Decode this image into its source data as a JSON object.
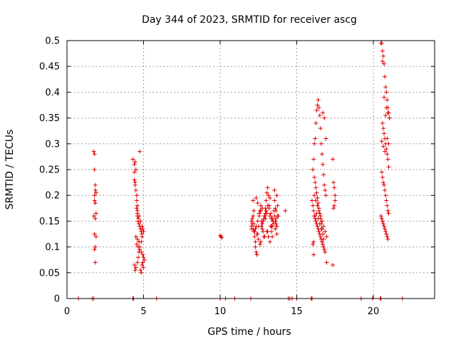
{
  "chart_data": {
    "type": "scatter",
    "title": "Day 344 of 2023, SRMTID for receiver ascg",
    "xlabel": "GPS time / hours",
    "ylabel": "SRMTID / TECUs",
    "xlim": [
      0,
      24
    ],
    "ylim": [
      0,
      0.5
    ],
    "x_ticks": [
      0,
      5,
      10,
      15,
      20
    ],
    "y_ticks": [
      0,
      0.05,
      0.1,
      0.15,
      0.2,
      0.25,
      0.3,
      0.35,
      0.4,
      0.45,
      0.5
    ],
    "x_tick_labels": [
      "0",
      "5",
      "10",
      "15",
      "20"
    ],
    "y_tick_labels": [
      "0",
      "0.05",
      "0.1",
      "0.15",
      "0.2",
      "0.25",
      "0.3",
      "0.35",
      "0.4",
      "0.45",
      "0.5"
    ],
    "grid": true,
    "marker": "+",
    "color": "#e00000",
    "series": [
      {
        "name": "SRMTID",
        "x": [
          0.75,
          1.65,
          1.75,
          1.8,
          1.8,
          1.85,
          1.85,
          1.8,
          1.9,
          1.8,
          1.85,
          1.9,
          1.75,
          1.85,
          1.8,
          1.9,
          1.85,
          1.8,
          1.85,
          1.75,
          4.3,
          4.3,
          4.4,
          4.4,
          4.45,
          4.45,
          4.5,
          4.55,
          4.55,
          4.6,
          4.6,
          4.6,
          4.65,
          4.65,
          4.7,
          4.75,
          4.8,
          4.85,
          4.9,
          4.5,
          4.6,
          4.7,
          4.55,
          4.65,
          4.75,
          4.85,
          4.95,
          5.0,
          5.05,
          4.95,
          4.9,
          5.0,
          4.8,
          4.85,
          4.75,
          4.45,
          4.5,
          4.4,
          4.55,
          4.6,
          4.7,
          4.8,
          4.9,
          4.95,
          5.0,
          4.9,
          4.85,
          4.75,
          4.7,
          4.65,
          4.6,
          4.5,
          4.45,
          4.4,
          4.35,
          5.85,
          10.0,
          10.05,
          10.1,
          10.0,
          10.35,
          10.95,
          12.0,
          12.05,
          12.05,
          12.1,
          12.1,
          12.15,
          12.15,
          12.2,
          12.2,
          12.25,
          12.3,
          12.3,
          12.35,
          12.4,
          12.45,
          12.5,
          12.55,
          12.6,
          12.65,
          12.7,
          12.75,
          12.8,
          12.85,
          12.9,
          12.95,
          13.0,
          13.05,
          13.1,
          13.15,
          13.2,
          13.25,
          13.3,
          13.35,
          13.4,
          13.45,
          13.5,
          13.55,
          13.6,
          13.65,
          13.7,
          13.75,
          12.2,
          12.3,
          12.4,
          12.5,
          12.6,
          12.7,
          12.8,
          12.9,
          13.0,
          13.1,
          13.2,
          13.3,
          13.4,
          13.5,
          13.6,
          13.7,
          12.25,
          12.35,
          12.45,
          12.55,
          12.65,
          12.75,
          12.85,
          12.95,
          13.05,
          13.15,
          13.25,
          13.35,
          13.45,
          13.55,
          13.65,
          13.75,
          12.15,
          12.45,
          12.75,
          13.05,
          13.35,
          13.65,
          12.05,
          12.95,
          13.25,
          13.55,
          13.7,
          12.35,
          12.65,
          12.9,
          13.1,
          13.4,
          13.6,
          13.8,
          14.25,
          14.45,
          14.55,
          14.7,
          15.0,
          15.95,
          16.0,
          16.05,
          16.1,
          16.15,
          16.2,
          16.25,
          16.3,
          16.35,
          16.4,
          16.45,
          16.5,
          16.55,
          16.6,
          16.65,
          16.7,
          16.75,
          16.8,
          16.85,
          16.9,
          16.0,
          16.05,
          16.1,
          16.15,
          16.2,
          16.25,
          16.3,
          16.35,
          16.4,
          16.45,
          16.5,
          16.55,
          16.6,
          16.65,
          16.7,
          16.75,
          16.8,
          16.85,
          16.1,
          16.15,
          16.2,
          16.25,
          16.3,
          16.35,
          16.4,
          16.45,
          16.5,
          16.55,
          16.6,
          16.65,
          16.7,
          16.75,
          16.05,
          16.15,
          16.25,
          16.35,
          16.45,
          16.55,
          16.65,
          16.75,
          16.85,
          16.95,
          16.1,
          16.2,
          16.3,
          16.4,
          16.5,
          16.6,
          16.7,
          16.8,
          16.9,
          17.35,
          17.4,
          17.45,
          17.5,
          17.5,
          17.45,
          17.4,
          17.35,
          16.95,
          19.2,
          19.95,
          20.45,
          20.5,
          20.55,
          20.6,
          20.65,
          20.7,
          20.75,
          20.8,
          20.85,
          20.9,
          20.95,
          21.0,
          21.05,
          20.6,
          20.65,
          20.7,
          20.75,
          20.8,
          20.85,
          20.9,
          20.95,
          21.0,
          20.55,
          20.6,
          20.65,
          20.7,
          20.75,
          20.8,
          20.85,
          20.9,
          20.95,
          21.0,
          20.5,
          20.55,
          20.6,
          20.65,
          20.7,
          20.75,
          20.8,
          20.85,
          20.9,
          20.95,
          20.5,
          20.6,
          20.7,
          20.8,
          20.9,
          21.0,
          20.55,
          20.65,
          20.75,
          20.85,
          20.95,
          21.05,
          21.9
        ],
        "y": [
          0,
          0,
          0.285,
          0.28,
          0.25,
          0.22,
          0.21,
          0.2,
          0.205,
          0.19,
          0.185,
          0.165,
          0.16,
          0.155,
          0.125,
          0.12,
          0.1,
          0.095,
          0.07,
          0,
          0,
          0.27,
          0.26,
          0.245,
          0.225,
          0.22,
          0.21,
          0.2,
          0.19,
          0.18,
          0.165,
          0.16,
          0.155,
          0.15,
          0.145,
          0.14,
          0.135,
          0.13,
          0.125,
          0.12,
          0.115,
          0.11,
          0.105,
          0.1,
          0.095,
          0.09,
          0.085,
          0.08,
          0.075,
          0.07,
          0.065,
          0.06,
          0.055,
          0.05,
          0.285,
          0.265,
          0.25,
          0.23,
          0.175,
          0.17,
          0.16,
          0.15,
          0.14,
          0.135,
          0.13,
          0.12,
          0.11,
          0.1,
          0.09,
          0.08,
          0.07,
          0.06,
          0.055,
          0.065,
          0,
          0,
          0,
          0.12,
          0.118,
          0.122,
          0,
          0,
          0,
          0.14,
          0.15,
          0.155,
          0.145,
          0.16,
          0.135,
          0.17,
          0.13,
          0.12,
          0.11,
          0.1,
          0.09,
          0.085,
          0.125,
          0.14,
          0.165,
          0.17,
          0.18,
          0.15,
          0.135,
          0.13,
          0.12,
          0.16,
          0.175,
          0.19,
          0.205,
          0.215,
          0.2,
          0.18,
          0.16,
          0.14,
          0.13,
          0.12,
          0.15,
          0.17,
          0.19,
          0.175,
          0.155,
          0.14,
          0.16,
          0.145,
          0.135,
          0.125,
          0.115,
          0.105,
          0.14,
          0.15,
          0.16,
          0.17,
          0.18,
          0.175,
          0.165,
          0.155,
          0.145,
          0.135,
          0.125,
          0.13,
          0.14,
          0.15,
          0.16,
          0.17,
          0.145,
          0.155,
          0.165,
          0.13,
          0.12,
          0.11,
          0.14,
          0.15,
          0.16,
          0.17,
          0.18,
          0.19,
          0.185,
          0.175,
          0.165,
          0.155,
          0.145,
          0.135,
          0.155,
          0.195,
          0.21,
          0.2,
          0.195,
          0.11,
          0.12,
          0.13,
          0.14,
          0.15,
          0.16,
          0.17,
          0,
          0,
          0,
          0,
          0,
          0,
          0.25,
          0.27,
          0.3,
          0.31,
          0.34,
          0.365,
          0.375,
          0.385,
          0.37,
          0.355,
          0.33,
          0.3,
          0.28,
          0.26,
          0.24,
          0.22,
          0.21,
          0.2,
          0.19,
          0.18,
          0.17,
          0.16,
          0.155,
          0.15,
          0.145,
          0.14,
          0.135,
          0.13,
          0.125,
          0.12,
          0.115,
          0.11,
          0.105,
          0.1,
          0.095,
          0.09,
          0.085,
          0.235,
          0.225,
          0.215,
          0.205,
          0.195,
          0.185,
          0.175,
          0.165,
          0.155,
          0.145,
          0.135,
          0.125,
          0.115,
          0.105,
          0.2,
          0.19,
          0.18,
          0.17,
          0.16,
          0.15,
          0.14,
          0.13,
          0.12,
          0.11,
          0.16,
          0.165,
          0.155,
          0.145,
          0.135,
          0.36,
          0.35,
          0.31,
          0.27,
          0.225,
          0.215,
          0.2,
          0.19,
          0.18,
          0.175,
          0.065,
          0.07,
          0,
          0,
          0,
          0,
          0.495,
          0.48,
          0.47,
          0.455,
          0.43,
          0.41,
          0.4,
          0.385,
          0.37,
          0.36,
          0.35,
          0.34,
          0.33,
          0.32,
          0.31,
          0.3,
          0.29,
          0.28,
          0.27,
          0.255,
          0.245,
          0.235,
          0.225,
          0.22,
          0.21,
          0.2,
          0.19,
          0.18,
          0.17,
          0.165,
          0.16,
          0.155,
          0.15,
          0.145,
          0.14,
          0.135,
          0.13,
          0.125,
          0.12,
          0.115,
          0.495,
          0.46,
          0.39,
          0.355,
          0.31,
          0.3,
          0.305,
          0.295,
          0.285,
          0.37,
          0.36,
          0.35,
          0
        ]
      }
    ]
  }
}
